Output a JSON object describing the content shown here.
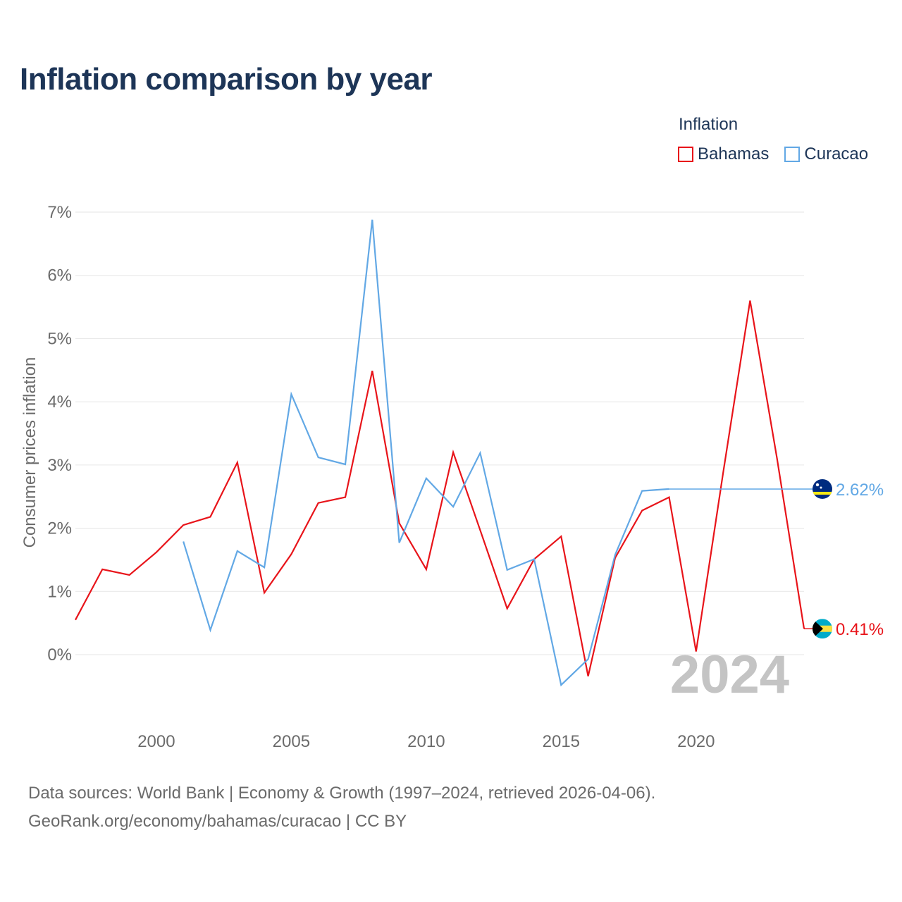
{
  "chart_data": {
    "type": "line",
    "title": "Inflation comparison by year",
    "legend_title": "Inflation",
    "legend_position": "top-right",
    "ylabel": "Consumer prices inflation",
    "xlabel": "",
    "xlim": [
      1997,
      2024
    ],
    "ylim": [
      -0.8,
      7
    ],
    "y_ticks": [
      0,
      1,
      2,
      3,
      4,
      5,
      6,
      7
    ],
    "y_tick_labels": [
      "0%",
      "1%",
      "2%",
      "3%",
      "4%",
      "5%",
      "6%",
      "7%"
    ],
    "x_ticks": [
      2000,
      2005,
      2010,
      2015,
      2020
    ],
    "x_tick_labels": [
      "2000",
      "2005",
      "2010",
      "2015",
      "2020"
    ],
    "grid": true,
    "year_watermark": "2024",
    "series": [
      {
        "name": "Bahamas",
        "color": "#e8141a",
        "end_label": "0.41%",
        "points": [
          [
            1997,
            0.55
          ],
          [
            1998,
            1.35
          ],
          [
            1999,
            1.26
          ],
          [
            2000,
            1.62
          ],
          [
            2001,
            2.05
          ],
          [
            2002,
            2.18
          ],
          [
            2003,
            3.04
          ],
          [
            2004,
            0.98
          ],
          [
            2005,
            1.59
          ],
          [
            2006,
            2.4
          ],
          [
            2007,
            2.49
          ],
          [
            2008,
            4.49
          ],
          [
            2009,
            2.08
          ],
          [
            2010,
            1.35
          ],
          [
            2011,
            3.2
          ],
          [
            2012,
            1.97
          ],
          [
            2013,
            0.73
          ],
          [
            2014,
            1.51
          ],
          [
            2015,
            1.87
          ],
          [
            2016,
            -0.34
          ],
          [
            2017,
            1.53
          ],
          [
            2018,
            2.28
          ],
          [
            2019,
            2.49
          ],
          [
            2020,
            0.05
          ],
          [
            2021,
            2.87
          ],
          [
            2022,
            5.6
          ],
          [
            2023,
            3.1
          ],
          [
            2024,
            0.41
          ]
        ]
      },
      {
        "name": "Curacao",
        "color": "#62a8e5",
        "end_label": "2.62%",
        "points": [
          [
            2001,
            1.79
          ],
          [
            2002,
            0.39
          ],
          [
            2003,
            1.64
          ],
          [
            2004,
            1.38
          ],
          [
            2005,
            4.12
          ],
          [
            2006,
            3.12
          ],
          [
            2007,
            3.01
          ],
          [
            2008,
            6.88
          ],
          [
            2009,
            1.77
          ],
          [
            2010,
            2.79
          ],
          [
            2011,
            2.34
          ],
          [
            2012,
            3.19
          ],
          [
            2013,
            1.34
          ],
          [
            2014,
            1.51
          ],
          [
            2015,
            -0.48
          ],
          [
            2016,
            -0.07
          ],
          [
            2017,
            1.58
          ],
          [
            2018,
            2.59
          ],
          [
            2019,
            2.62
          ]
        ]
      }
    ]
  },
  "source": {
    "line1": "Data sources: World Bank | Economy & Growth (1997–2024, retrieved 2026-04-06).",
    "line2": "GeoRank.org/economy/bahamas/curacao | CC BY"
  }
}
